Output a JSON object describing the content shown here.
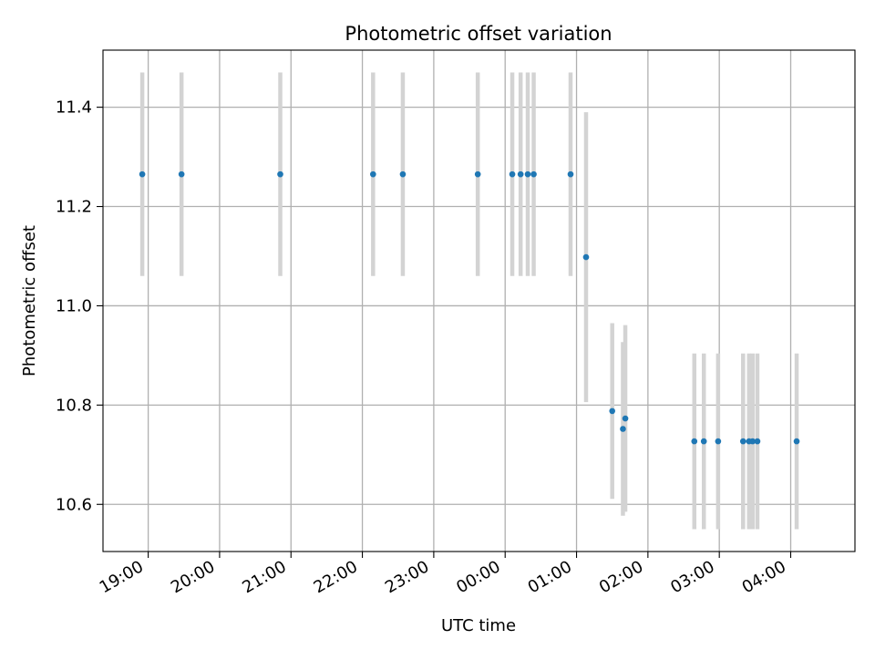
{
  "chart_data": {
    "type": "scatter",
    "title": "Photometric offset variation",
    "xlabel": "UTC time",
    "ylabel": "Photometric offset",
    "x_is_time": true,
    "xlim": [
      "18:22",
      "04:54"
    ],
    "ylim": [
      10.505,
      11.515
    ],
    "xticks": [
      "19:00",
      "20:00",
      "21:00",
      "22:00",
      "23:00",
      "00:00",
      "01:00",
      "02:00",
      "03:00",
      "04:00"
    ],
    "yticks": [
      10.6,
      10.8,
      11.0,
      11.2,
      11.4
    ],
    "grid": true,
    "colors": {
      "point": "#1f77b4",
      "errorbar": "#d3d3d3",
      "grid": "#b0b0b0"
    },
    "points": [
      {
        "t": "18:55",
        "y": 11.265,
        "err": 0.205
      },
      {
        "t": "19:28",
        "y": 11.265,
        "err": 0.205
      },
      {
        "t": "20:51",
        "y": 11.265,
        "err": 0.205
      },
      {
        "t": "22:09",
        "y": 11.265,
        "err": 0.205
      },
      {
        "t": "22:34",
        "y": 11.265,
        "err": 0.205
      },
      {
        "t": "23:37",
        "y": 11.265,
        "err": 0.205
      },
      {
        "t": "00:06",
        "y": 11.265,
        "err": 0.205
      },
      {
        "t": "00:13",
        "y": 11.265,
        "err": 0.205
      },
      {
        "t": "00:19",
        "y": 11.265,
        "err": 0.205
      },
      {
        "t": "00:24",
        "y": 11.265,
        "err": 0.205
      },
      {
        "t": "00:55",
        "y": 11.265,
        "err": 0.205
      },
      {
        "t": "01:08",
        "y": 11.098,
        "err": 0.292
      },
      {
        "t": "01:30",
        "y": 10.788,
        "err": 0.177
      },
      {
        "t": "01:39",
        "y": 10.752,
        "err": 0.175
      },
      {
        "t": "01:41",
        "y": 10.773,
        "err": 0.188
      },
      {
        "t": "02:39",
        "y": 10.727,
        "err": 0.177
      },
      {
        "t": "02:47",
        "y": 10.727,
        "err": 0.177
      },
      {
        "t": "02:59",
        "y": 10.727,
        "err": 0.177
      },
      {
        "t": "03:20",
        "y": 10.727,
        "err": 0.177
      },
      {
        "t": "03:25",
        "y": 10.727,
        "err": 0.177
      },
      {
        "t": "03:28",
        "y": 10.727,
        "err": 0.177
      },
      {
        "t": "03:32",
        "y": 10.727,
        "err": 0.177
      },
      {
        "t": "04:05",
        "y": 10.727,
        "err": 0.177
      }
    ]
  }
}
